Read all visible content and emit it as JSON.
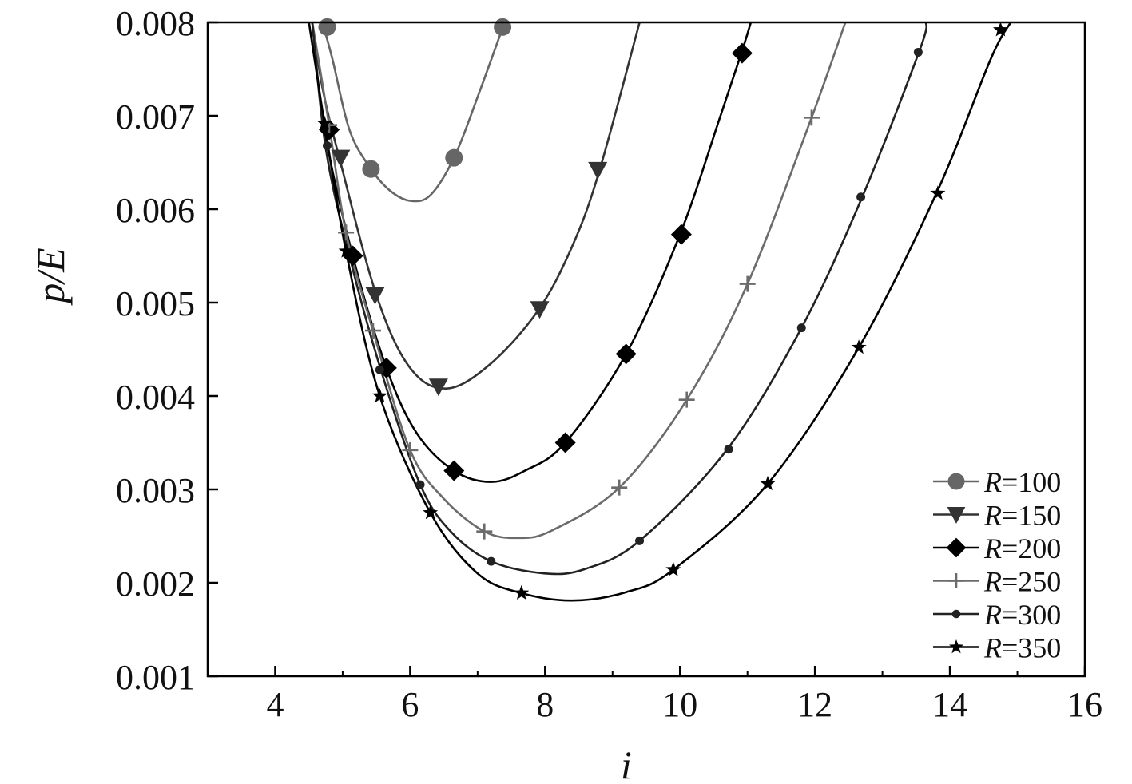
{
  "chart_data": {
    "type": "line",
    "xlabel": "i",
    "ylabel": "p/E",
    "xlim": [
      3,
      16
    ],
    "ylim": [
      0.001,
      0.008
    ],
    "x_ticks": [
      4,
      6,
      8,
      10,
      12,
      14,
      16
    ],
    "x_tick_labels": [
      "4",
      "6",
      "8",
      "10",
      "12",
      "14",
      "16"
    ],
    "y_ticks": [
      0.001,
      0.002,
      0.003,
      0.004,
      0.005,
      0.006,
      0.007,
      0.008
    ],
    "y_tick_labels": [
      "0.001",
      "0.002",
      "0.003",
      "0.004",
      "0.005",
      "0.006",
      "0.007",
      "0.008"
    ],
    "legend_position": "bottom-right",
    "series": [
      {
        "name": "R=100",
        "label_var": "R",
        "label_val": "=100",
        "color": "#666666",
        "marker": "circle",
        "curve": [
          [
            4.7,
            0.008
          ],
          [
            4.85,
            0.0076
          ],
          [
            5.1,
            0.00685
          ],
          [
            5.4,
            0.00645
          ],
          [
            5.7,
            0.0062
          ],
          [
            6.0,
            0.00609
          ],
          [
            6.3,
            0.00615
          ],
          [
            6.65,
            0.00655
          ],
          [
            7.0,
            0.0072
          ],
          [
            7.4,
            0.008
          ]
        ],
        "markers": [
          [
            4.77,
            0.00795
          ],
          [
            5.42,
            0.00643
          ],
          [
            6.65,
            0.00655
          ],
          [
            7.37,
            0.00795
          ]
        ]
      },
      {
        "name": "R=150",
        "label_var": "R",
        "label_val": "=150",
        "color": "#333333",
        "marker": "triangle-down",
        "curve": [
          [
            4.55,
            0.008
          ],
          [
            4.7,
            0.0073
          ],
          [
            4.95,
            0.00655
          ],
          [
            5.5,
            0.00508
          ],
          [
            6.0,
            0.0043
          ],
          [
            6.55,
            0.00408
          ],
          [
            7.2,
            0.00435
          ],
          [
            7.9,
            0.00492
          ],
          [
            8.4,
            0.0056
          ],
          [
            8.8,
            0.0064
          ],
          [
            9.4,
            0.008
          ]
        ],
        "markers": [
          [
            4.97,
            0.00655
          ],
          [
            5.48,
            0.00508
          ],
          [
            6.42,
            0.0041
          ],
          [
            7.92,
            0.00493
          ],
          [
            8.78,
            0.00642
          ]
        ]
      },
      {
        "name": "R=200",
        "label_var": "R",
        "label_val": "=200",
        "color": "#000000",
        "marker": "diamond",
        "curve": [
          [
            4.55,
            0.008
          ],
          [
            4.73,
            0.00685
          ],
          [
            5.15,
            0.0055
          ],
          [
            5.65,
            0.0043
          ],
          [
            6.1,
            0.0036
          ],
          [
            6.65,
            0.0032
          ],
          [
            7.2,
            0.00308
          ],
          [
            7.7,
            0.0032
          ],
          [
            8.3,
            0.0035
          ],
          [
            9.2,
            0.00445
          ],
          [
            10.0,
            0.00573
          ],
          [
            10.6,
            0.007
          ],
          [
            10.9,
            0.00765
          ],
          [
            11.05,
            0.008
          ]
        ],
        "markers": [
          [
            4.8,
            0.00685
          ],
          [
            5.15,
            0.0055
          ],
          [
            5.65,
            0.0043
          ],
          [
            6.65,
            0.0032
          ],
          [
            8.3,
            0.0035
          ],
          [
            9.2,
            0.00445
          ],
          [
            10.02,
            0.00573
          ],
          [
            10.92,
            0.00767
          ]
        ]
      },
      {
        "name": "R=250",
        "label_var": "R",
        "label_val": "=250",
        "color": "#6b6b6b",
        "marker": "plus",
        "curve": [
          [
            4.55,
            0.008
          ],
          [
            4.8,
            0.0069
          ],
          [
            5.05,
            0.00575
          ],
          [
            5.45,
            0.0047
          ],
          [
            6.0,
            0.00342
          ],
          [
            6.5,
            0.0029
          ],
          [
            7.1,
            0.00255
          ],
          [
            7.6,
            0.00248
          ],
          [
            8.1,
            0.00256
          ],
          [
            9.1,
            0.00302
          ],
          [
            10.1,
            0.00396
          ],
          [
            11.0,
            0.0052
          ],
          [
            11.95,
            0.00698
          ],
          [
            12.45,
            0.008
          ]
        ],
        "markers": [
          [
            4.8,
            0.0069
          ],
          [
            5.05,
            0.00575
          ],
          [
            5.45,
            0.0047
          ],
          [
            6.0,
            0.00342
          ],
          [
            7.1,
            0.00255
          ],
          [
            9.1,
            0.00302
          ],
          [
            10.1,
            0.00396
          ],
          [
            11.0,
            0.0052
          ],
          [
            11.95,
            0.00698
          ]
        ]
      },
      {
        "name": "R=300",
        "label_var": "R",
        "label_val": "=300",
        "color": "#222222",
        "marker": "dot",
        "curve": [
          [
            4.55,
            0.008
          ],
          [
            4.75,
            0.00665
          ],
          [
            5.1,
            0.0055
          ],
          [
            5.6,
            0.0042
          ],
          [
            6.15,
            0.00305
          ],
          [
            6.6,
            0.00255
          ],
          [
            7.2,
            0.00223
          ],
          [
            8.0,
            0.0021
          ],
          [
            8.6,
            0.00215
          ],
          [
            9.4,
            0.00245
          ],
          [
            10.7,
            0.00343
          ],
          [
            11.8,
            0.00473
          ],
          [
            12.7,
            0.00613
          ],
          [
            13.55,
            0.0077
          ],
          [
            13.65,
            0.008
          ]
        ],
        "markers": [
          [
            4.77,
            0.00668
          ],
          [
            5.55,
            0.00428
          ],
          [
            6.15,
            0.00305
          ],
          [
            7.2,
            0.00223
          ],
          [
            9.4,
            0.00245
          ],
          [
            10.72,
            0.00343
          ],
          [
            11.8,
            0.00473
          ],
          [
            12.68,
            0.00613
          ],
          [
            13.53,
            0.00768
          ]
        ]
      },
      {
        "name": "R=350",
        "label_var": "R",
        "label_val": "=350",
        "color": "#000000",
        "marker": "star",
        "curve": [
          [
            4.5,
            0.008
          ],
          [
            4.73,
            0.00692
          ],
          [
            5.05,
            0.00555
          ],
          [
            5.55,
            0.004
          ],
          [
            6.3,
            0.00275
          ],
          [
            7.0,
            0.0021
          ],
          [
            7.65,
            0.00189
          ],
          [
            8.4,
            0.00181
          ],
          [
            9.2,
            0.0019
          ],
          [
            9.9,
            0.00214
          ],
          [
            11.3,
            0.00306
          ],
          [
            12.65,
            0.00452
          ],
          [
            13.8,
            0.00617
          ],
          [
            14.6,
            0.0076
          ],
          [
            14.9,
            0.008
          ]
        ],
        "markers": [
          [
            4.73,
            0.00692
          ],
          [
            5.05,
            0.00555
          ],
          [
            5.55,
            0.004
          ],
          [
            6.3,
            0.00275
          ],
          [
            7.65,
            0.00189
          ],
          [
            9.9,
            0.00214
          ],
          [
            11.3,
            0.00306
          ],
          [
            12.65,
            0.00452
          ],
          [
            13.82,
            0.00617
          ],
          [
            14.75,
            0.00792
          ]
        ]
      }
    ]
  }
}
